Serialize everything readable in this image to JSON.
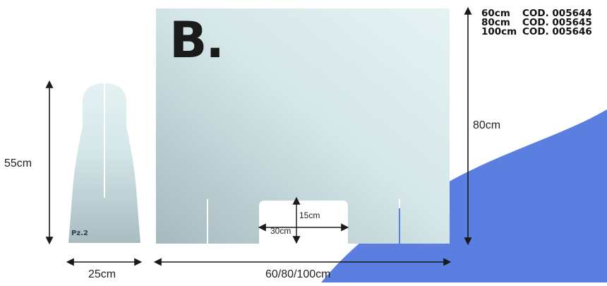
{
  "panel": {
    "label": "B.",
    "codes": [
      {
        "size": "60cm",
        "code": "COD. 005644"
      },
      {
        "size": "80cm",
        "code": "COD. 005645"
      },
      {
        "size": "100cm",
        "code": "COD. 005646"
      }
    ],
    "height": "80cm",
    "width": "60/80/100cm",
    "window_height": "15cm",
    "window_width": "30cm"
  },
  "side_piece": {
    "height": "55cm",
    "width": "25cm",
    "quantity": "Pz.2"
  },
  "colors": {
    "accent_blue": "#5a7fe0",
    "glass_dark": "#a7bcc1",
    "glass_light": "#e4f1f2",
    "line": "#1a1a1a"
  }
}
